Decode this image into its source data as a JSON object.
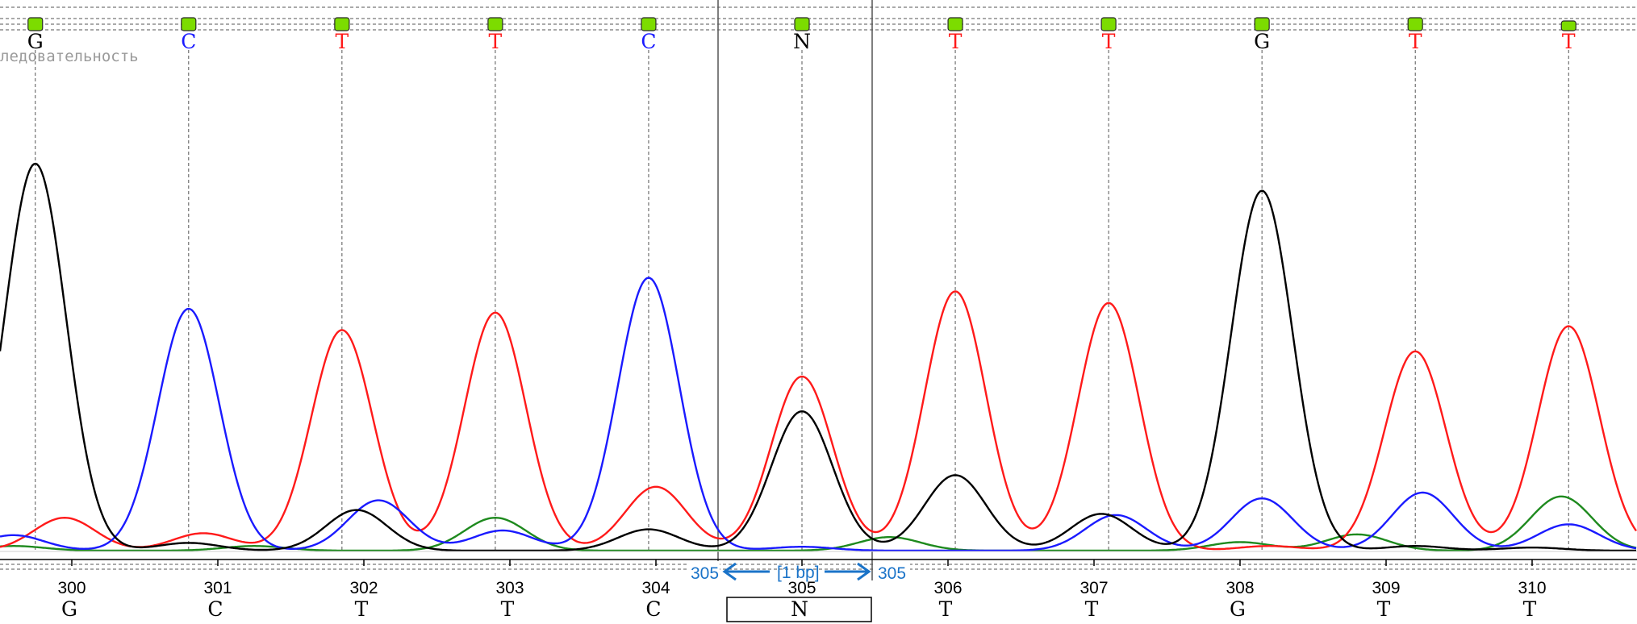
{
  "window": {
    "sequence_label": "ледовательность"
  },
  "selection": {
    "start_label": "305",
    "end_label": "305",
    "width_label": "[1 bp]"
  },
  "colors": {
    "A": "#1e8a1e",
    "C": "#1a1aff",
    "G": "#000000",
    "T": "#ff1a1a",
    "N": "#000000",
    "quality_marker": "#7cdc00",
    "selection": "#1a73c8"
  },
  "chart_data": {
    "type": "line",
    "title": "",
    "xlabel": "",
    "ylabel": "",
    "x_positions": [
      300,
      301,
      302,
      303,
      304,
      305,
      306,
      307,
      308,
      309,
      310
    ],
    "base_calls": [
      "G",
      "C",
      "T",
      "T",
      "C",
      "N",
      "T",
      "T",
      "G",
      "T",
      "T"
    ],
    "reference_bases": [
      "G",
      "C",
      "T",
      "T",
      "C",
      "N",
      "T",
      "T",
      "G",
      "T",
      "T"
    ],
    "peak_positions": [
      299.75,
      300.8,
      301.85,
      302.9,
      303.95,
      305.0,
      306.05,
      307.1,
      308.15,
      309.2,
      310.25
    ],
    "ylim": [
      0,
      1000
    ],
    "series": [
      {
        "base": "G",
        "peaks": [
          {
            "x": 299.75,
            "y": 1000
          },
          {
            "x": 300.8,
            "y": 20
          },
          {
            "x": 301.95,
            "y": 105
          },
          {
            "x": 303.95,
            "y": 55
          },
          {
            "x": 305.0,
            "y": 360
          },
          {
            "x": 306.05,
            "y": 195
          },
          {
            "x": 307.05,
            "y": 95
          },
          {
            "x": 308.15,
            "y": 930
          },
          {
            "x": 309.2,
            "y": 12
          },
          {
            "x": 310.0,
            "y": 8
          }
        ]
      },
      {
        "base": "C",
        "peaks": [
          {
            "x": 299.6,
            "y": 40
          },
          {
            "x": 300.8,
            "y": 625
          },
          {
            "x": 302.1,
            "y": 130
          },
          {
            "x": 302.95,
            "y": 52
          },
          {
            "x": 303.95,
            "y": 705
          },
          {
            "x": 305.0,
            "y": 10
          },
          {
            "x": 307.15,
            "y": 92
          },
          {
            "x": 308.15,
            "y": 135
          },
          {
            "x": 309.25,
            "y": 150
          },
          {
            "x": 310.25,
            "y": 68
          }
        ]
      },
      {
        "base": "T",
        "peaks": [
          {
            "x": 299.95,
            "y": 85
          },
          {
            "x": 300.9,
            "y": 45
          },
          {
            "x": 301.85,
            "y": 570
          },
          {
            "x": 302.9,
            "y": 615
          },
          {
            "x": 304.0,
            "y": 165
          },
          {
            "x": 305.0,
            "y": 450
          },
          {
            "x": 306.05,
            "y": 670
          },
          {
            "x": 307.1,
            "y": 640
          },
          {
            "x": 308.2,
            "y": 12
          },
          {
            "x": 309.2,
            "y": 515
          },
          {
            "x": 310.25,
            "y": 580
          }
        ]
      },
      {
        "base": "A",
        "peaks": [
          {
            "x": 299.6,
            "y": 12
          },
          {
            "x": 301.25,
            "y": 12
          },
          {
            "x": 302.9,
            "y": 85
          },
          {
            "x": 305.6,
            "y": 35
          },
          {
            "x": 308.0,
            "y": 22
          },
          {
            "x": 308.8,
            "y": 42
          },
          {
            "x": 310.2,
            "y": 140
          }
        ]
      }
    ]
  }
}
